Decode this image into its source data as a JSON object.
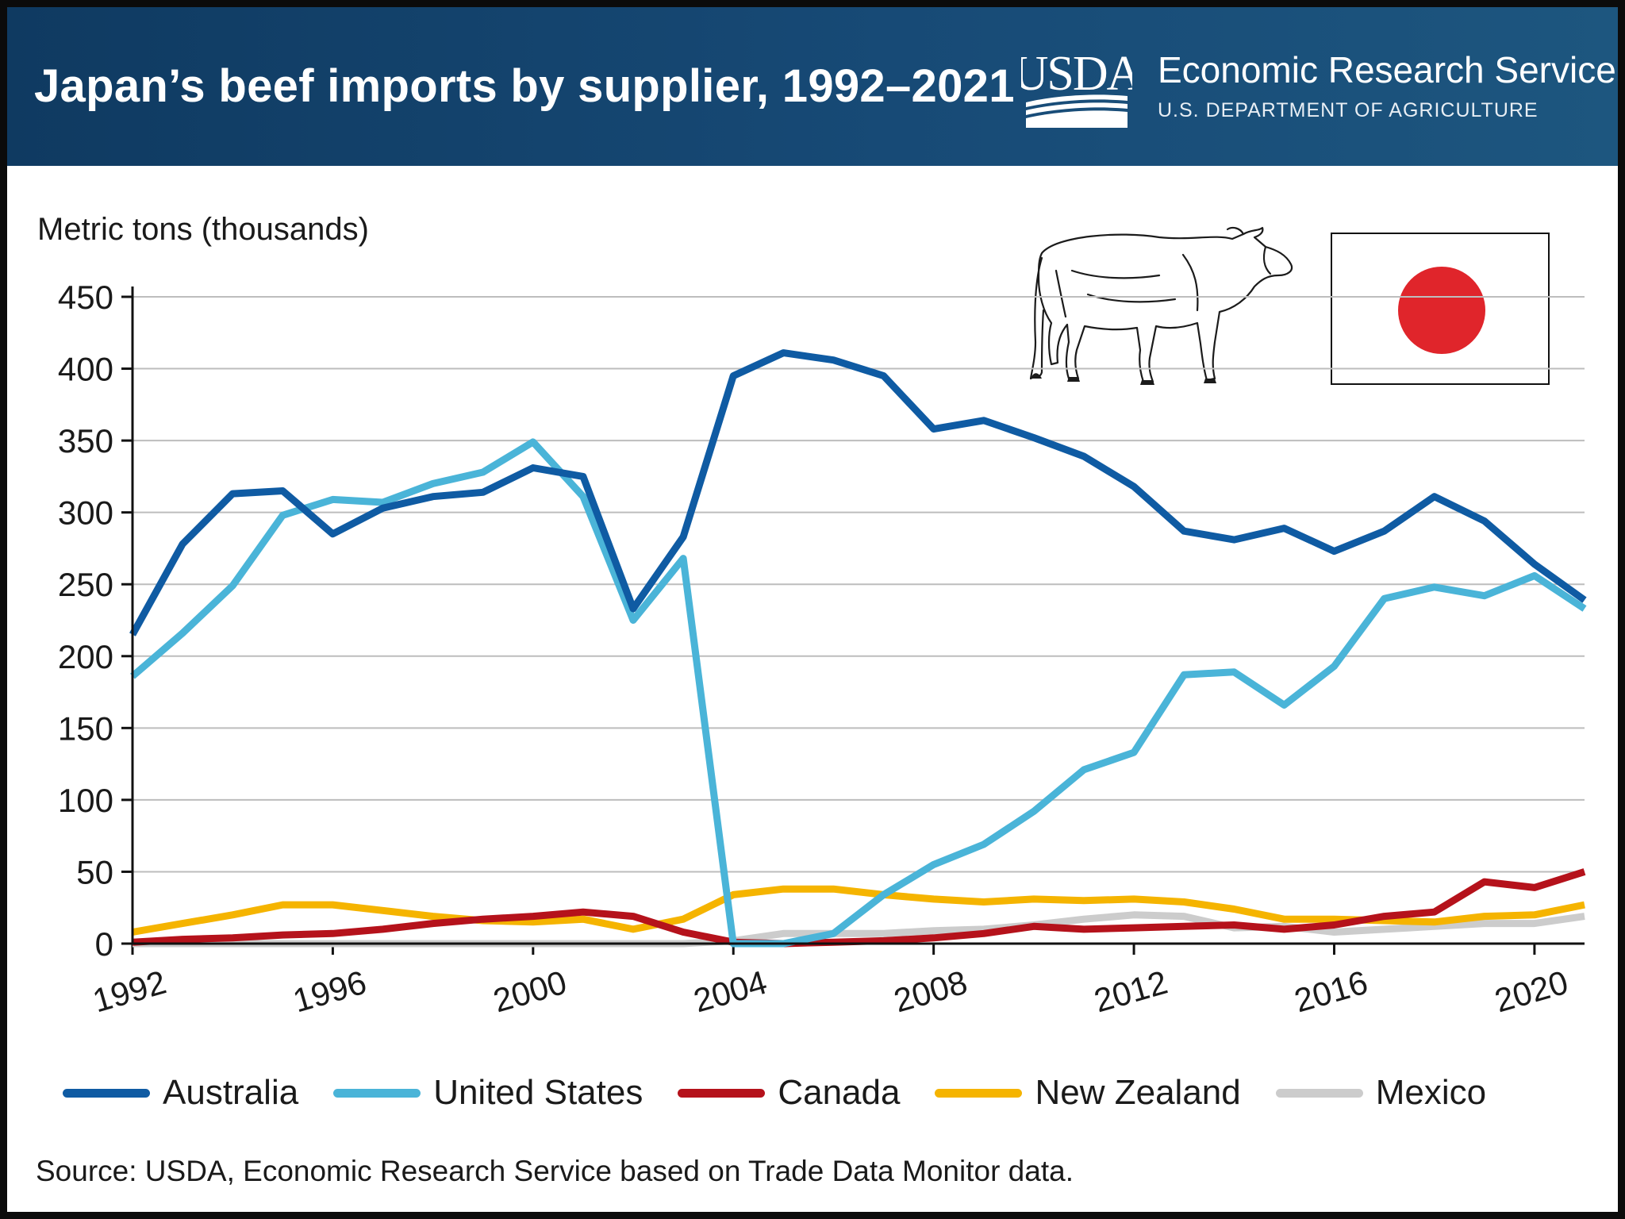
{
  "header": {
    "title": "Japan’s beef imports by supplier, 1992–2021",
    "logo_text": "USDA",
    "agency_name": "Economic Research Service",
    "agency_dept": "U.S. DEPARTMENT OF AGRICULTURE"
  },
  "illustrations": {
    "animal": "cow-icon",
    "flag": "japan-flag-icon",
    "flag_disc_color": "#e0252b"
  },
  "source": "Source: USDA, Economic Research Service based on Trade Data Monitor data.",
  "chart_data": {
    "type": "line",
    "title": "Japan’s beef imports by supplier, 1992–2021",
    "ylabel": "Metric tons (thousands)",
    "xlabel": "",
    "x": [
      1992,
      1993,
      1994,
      1995,
      1996,
      1997,
      1998,
      1999,
      2000,
      2001,
      2002,
      2003,
      2004,
      2005,
      2006,
      2007,
      2008,
      2009,
      2010,
      2011,
      2012,
      2013,
      2014,
      2015,
      2016,
      2017,
      2018,
      2019,
      2020,
      2021
    ],
    "xlim": [
      1992,
      2021
    ],
    "ylim": [
      0,
      450
    ],
    "xticks": [
      1992,
      1996,
      2000,
      2004,
      2008,
      2012,
      2016,
      2020
    ],
    "yticks": [
      0,
      50,
      100,
      150,
      200,
      250,
      300,
      350,
      400,
      450
    ],
    "grid": "horizontal",
    "legend_position": "bottom",
    "series": [
      {
        "name": "Australia",
        "color": "#0f5ba3",
        "values": [
          215,
          278,
          313,
          315,
          285,
          303,
          311,
          314,
          331,
          325,
          233,
          283,
          395,
          411,
          406,
          395,
          358,
          364,
          352,
          339,
          318,
          287,
          281,
          289,
          273,
          287,
          311,
          294,
          264,
          239
        ]
      },
      {
        "name": "United States",
        "color": "#4ab4d8",
        "values": [
          186,
          216,
          249,
          298,
          309,
          307,
          320,
          328,
          349,
          311,
          225,
          268,
          0,
          0,
          7,
          34,
          55,
          69,
          92,
          121,
          133,
          187,
          189,
          166,
          193,
          240,
          248,
          242,
          256,
          233
        ]
      },
      {
        "name": "Canada",
        "color": "#b5121b",
        "values": [
          1,
          3,
          4,
          6,
          7,
          10,
          14,
          17,
          19,
          22,
          19,
          8,
          1,
          0,
          1,
          2,
          4,
          7,
          12,
          10,
          11,
          12,
          13,
          10,
          13,
          19,
          22,
          43,
          39,
          50
        ]
      },
      {
        "name": "New Zealand",
        "color": "#f5b400",
        "values": [
          8,
          14,
          20,
          27,
          27,
          23,
          19,
          16,
          15,
          17,
          10,
          17,
          34,
          38,
          38,
          34,
          31,
          29,
          31,
          30,
          31,
          29,
          24,
          17,
          17,
          16,
          15,
          19,
          20,
          27
        ]
      },
      {
        "name": "Mexico",
        "color": "#cccccc",
        "values": [
          0,
          0,
          0,
          0,
          0,
          0,
          0,
          0,
          0,
          0,
          0,
          0,
          2,
          7,
          7,
          7,
          9,
          10,
          13,
          17,
          20,
          19,
          11,
          12,
          8,
          10,
          12,
          14,
          14,
          19
        ]
      }
    ]
  }
}
